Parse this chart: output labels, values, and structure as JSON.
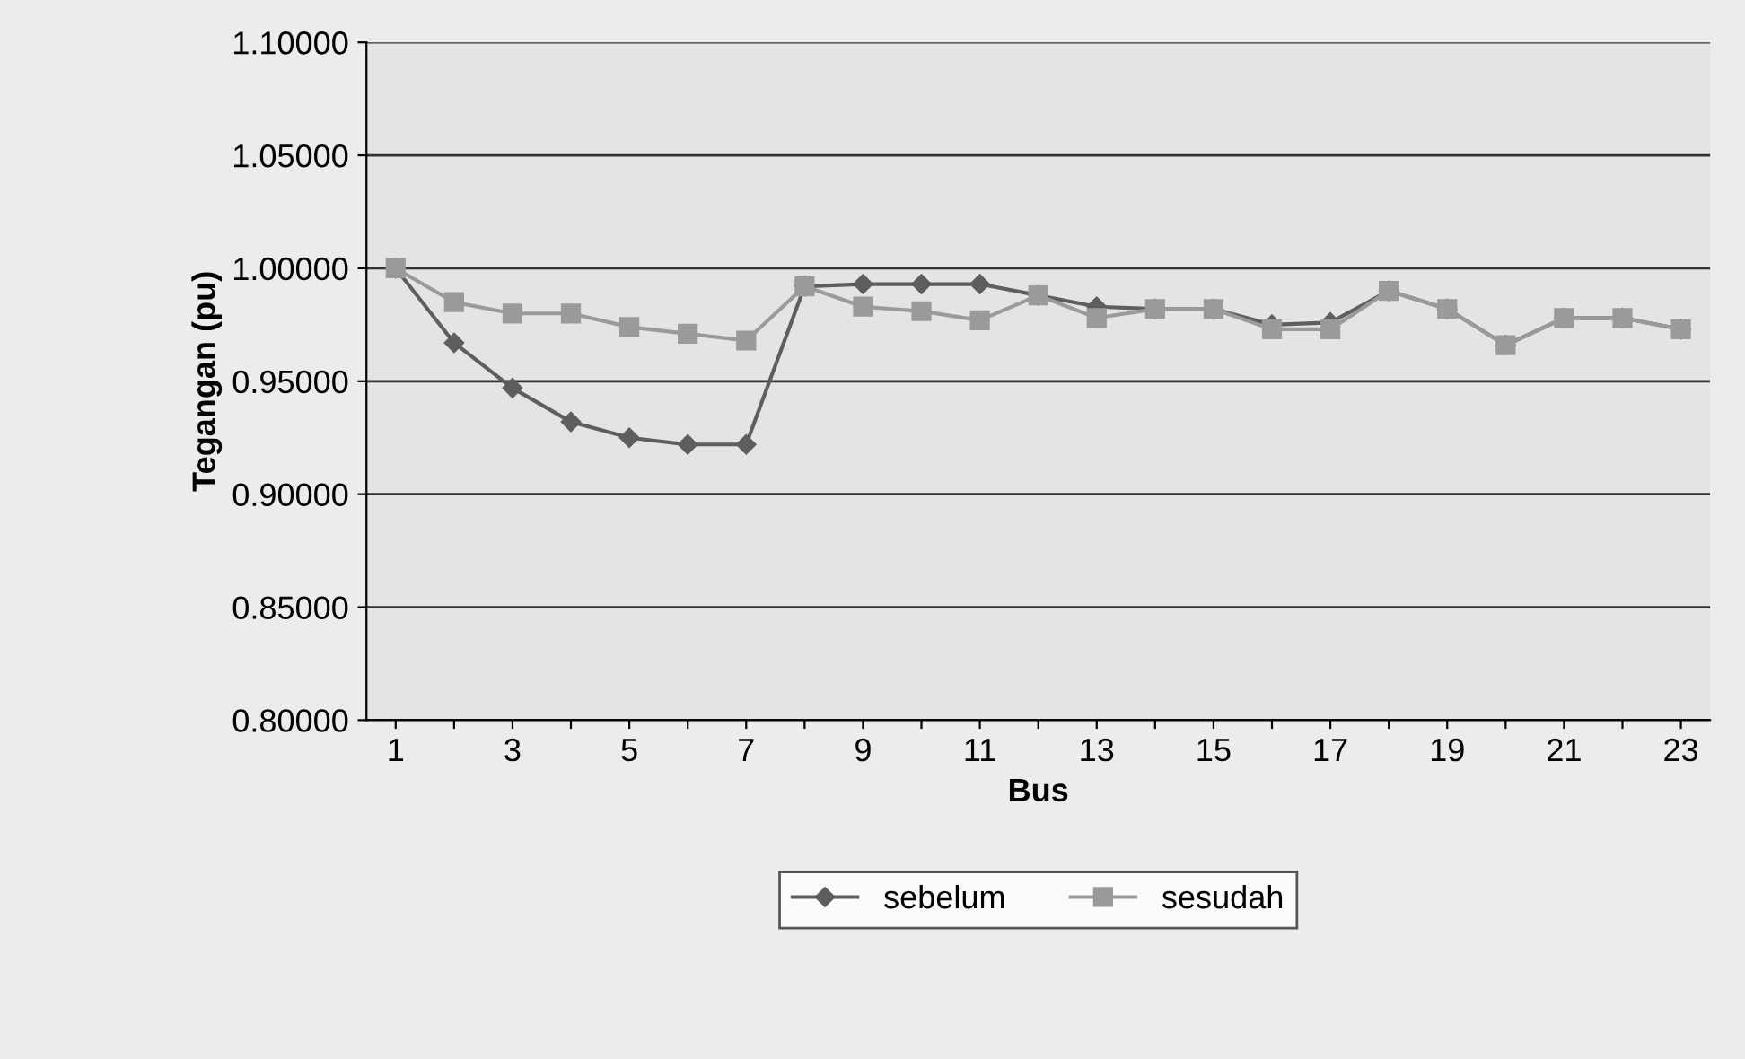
{
  "chart_data": {
    "type": "line",
    "xlabel": "Bus",
    "ylabel": "Tegangan (pu)",
    "categories": [
      "1",
      null,
      "3",
      null,
      "5",
      null,
      "7",
      null,
      "9",
      null,
      "11",
      null,
      "13",
      null,
      "15",
      null,
      "17",
      null,
      "19",
      null,
      "21",
      null,
      "23"
    ],
    "series": [
      {
        "name": "sebelum",
        "color": "#5e5e5e",
        "marker": "diamond",
        "values": [
          1.0,
          0.967,
          0.947,
          0.932,
          0.925,
          0.922,
          0.922,
          0.992,
          0.993,
          0.993,
          0.993,
          0.988,
          0.983,
          0.982,
          0.982,
          0.975,
          0.976,
          0.99,
          0.982,
          0.966,
          0.978,
          0.978,
          0.973
        ]
      },
      {
        "name": "sesudah",
        "color": "#9a9a9a",
        "marker": "square",
        "values": [
          1.0,
          0.985,
          0.98,
          0.98,
          0.974,
          0.971,
          0.968,
          0.992,
          0.983,
          0.981,
          0.977,
          0.988,
          0.978,
          0.982,
          0.982,
          0.973,
          0.973,
          0.99,
          0.982,
          0.966,
          0.978,
          0.978,
          0.973
        ]
      }
    ],
    "ylim": [
      0.8,
      1.1
    ],
    "yticks": [
      {
        "value": 0.8,
        "label": "0.80000"
      },
      {
        "value": 0.85,
        "label": "0.85000"
      },
      {
        "value": 0.9,
        "label": "0.90000"
      },
      {
        "value": 0.95,
        "label": "0.95000"
      },
      {
        "value": 1.0,
        "label": "1.00000"
      },
      {
        "value": 1.05,
        "label": "1.05000"
      },
      {
        "value": 1.1,
        "label": "1.10000"
      }
    ],
    "grid": "y",
    "legend": "bottom",
    "line_style": "solid"
  }
}
